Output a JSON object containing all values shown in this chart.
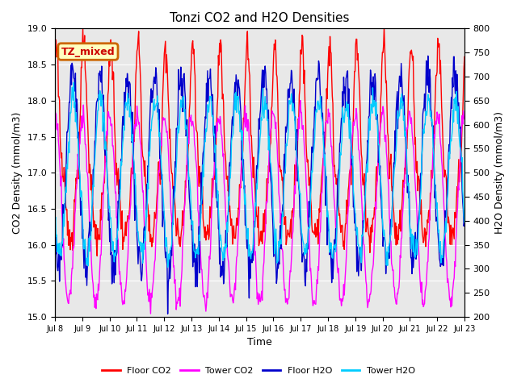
{
  "title": "Tonzi CO2 and H2O Densities",
  "xlabel": "Time",
  "ylabel_left": "CO2 Density (mmol/m3)",
  "ylabel_right": "H2O Density (mmol/m3)",
  "annotation_text": "TZ_mixed",
  "annotation_facecolor": "#ffffc0",
  "annotation_edgecolor": "#cc6600",
  "co2_ylim": [
    15.0,
    19.0
  ],
  "h2o_ylim": [
    200,
    800
  ],
  "co2_yticks": [
    15.0,
    15.5,
    16.0,
    16.5,
    17.0,
    17.5,
    18.0,
    18.5,
    19.0
  ],
  "h2o_yticks": [
    200,
    250,
    300,
    350,
    400,
    450,
    500,
    550,
    600,
    650,
    700,
    750,
    800
  ],
  "floor_co2_color": "#ff0000",
  "tower_co2_color": "#ff00ff",
  "floor_h2o_color": "#0000cc",
  "tower_h2o_color": "#00ccff",
  "plot_bg_color": "#e8e8e8",
  "linewidth": 1.0,
  "legend_labels": [
    "Floor CO2",
    "Tower CO2",
    "Floor H2O",
    "Tower H2O"
  ]
}
